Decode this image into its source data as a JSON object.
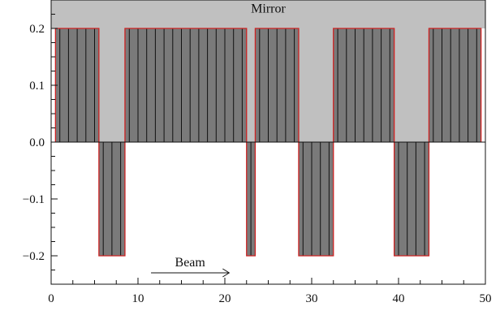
{
  "chart_data": {
    "type": "area",
    "title": "",
    "xlabel": "",
    "ylabel": "",
    "xlim": [
      0,
      50
    ],
    "ylim": [
      -0.25,
      0.25
    ],
    "x_ticks": [
      0,
      10,
      20,
      30,
      40,
      50
    ],
    "x_tick_labels": [
      "0",
      "10",
      "20",
      "30",
      "40",
      "50"
    ],
    "y_ticks": [
      0.2,
      0.1,
      0.0,
      -0.1,
      -0.2
    ],
    "y_tick_labels": [
      "0.2",
      "0.1",
      "0.0",
      "−0.1",
      "−0.2"
    ],
    "grid": false,
    "mirror": {
      "label": "Mirror",
      "fill_color": "#c0c0c0",
      "surface_y": 0.2,
      "profile": [
        {
          "x_start": 0.5,
          "x_end": 5.5,
          "depth": 0.2
        },
        {
          "x_start": 5.5,
          "x_end": 8.5,
          "depth": -0.2
        },
        {
          "x_start": 8.5,
          "x_end": 22.5,
          "depth": 0.2
        },
        {
          "x_start": 22.5,
          "x_end": 23.5,
          "depth": -0.2
        },
        {
          "x_start": 23.5,
          "x_end": 28.5,
          "depth": 0.2
        },
        {
          "x_start": 28.5,
          "x_end": 32.5,
          "depth": -0.2
        },
        {
          "x_start": 32.5,
          "x_end": 39.5,
          "depth": 0.2
        },
        {
          "x_start": 39.5,
          "x_end": 43.5,
          "depth": -0.2
        },
        {
          "x_start": 43.5,
          "x_end": 49.5,
          "depth": 0.2
        }
      ],
      "segment_fill_color": "#7a7a7a",
      "outline_color": "#cc2222"
    },
    "beam": {
      "label": "Beam",
      "x_start": 11.5,
      "x_end": 20.5,
      "y": -0.23
    }
  }
}
